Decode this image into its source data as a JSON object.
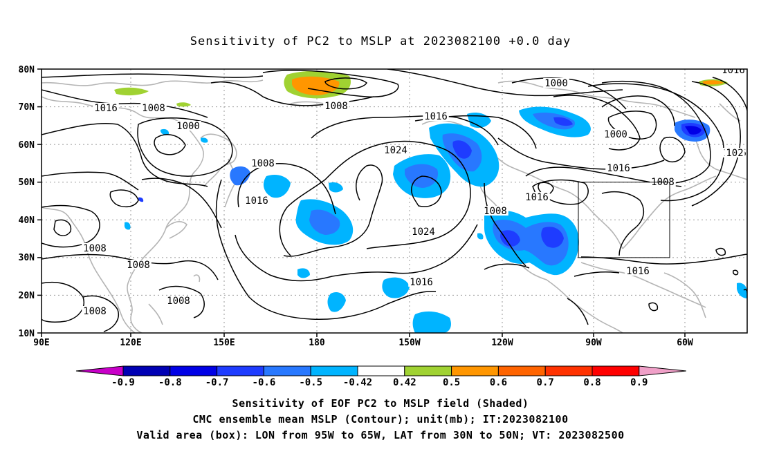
{
  "title": "Sensitivity of PC2 to MSLP at 2023082100 +0.0 day",
  "lat_labels": [
    "80N",
    "70N",
    "60N",
    "50N",
    "40N",
    "30N",
    "20N",
    "10N"
  ],
  "lon_labels": [
    "90E",
    "120E",
    "150E",
    "180",
    "150W",
    "120W",
    "90W",
    "60W"
  ],
  "contour_labels": [
    {
      "text": "1016"
    },
    {
      "text": "1008"
    },
    {
      "text": "1000"
    },
    {
      "text": "1008"
    },
    {
      "text": "1016"
    },
    {
      "text": "1024"
    },
    {
      "text": "1008"
    },
    {
      "text": "1016"
    },
    {
      "text": "1000"
    },
    {
      "text": "1000"
    },
    {
      "text": "1016"
    },
    {
      "text": "1008"
    },
    {
      "text": "1016"
    },
    {
      "text": "1008"
    },
    {
      "text": "1016"
    },
    {
      "text": "1024"
    },
    {
      "text": "1016"
    },
    {
      "text": "1008"
    },
    {
      "text": "1008"
    },
    {
      "text": "1008"
    },
    {
      "text": "1008"
    },
    {
      "text": "1016"
    },
    {
      "text": "1016"
    },
    {
      "text": "102"
    }
  ],
  "colorbar": {
    "labels": [
      "-0.9",
      "-0.8",
      "-0.7",
      "-0.6",
      "-0.5",
      "-0.42",
      "0.42",
      "0.5",
      "0.6",
      "0.7",
      "0.8",
      "0.9"
    ],
    "colors": [
      "#c800c8",
      "#0000b4",
      "#0000e6",
      "#1e3cff",
      "#2878ff",
      "#00b4ff",
      "#ffffff",
      "#a0d232",
      "#ff9600",
      "#ff6400",
      "#ff3200",
      "#ff0000",
      "#f0a0c8"
    ]
  },
  "valid_box": {
    "lon": [
      "95W",
      "65W"
    ],
    "lat": [
      "30N",
      "50N"
    ]
  },
  "captions": {
    "line1": "Sensitivity of EOF PC2 to MSLP field (Shaded)",
    "line2": "CMC ensemble mean MSLP (Contour); unit(mb); IT:2023082100",
    "line3": "Valid area (box): LON from 95W to 65W, LAT from 30N to 50N; VT: 2023082500"
  }
}
